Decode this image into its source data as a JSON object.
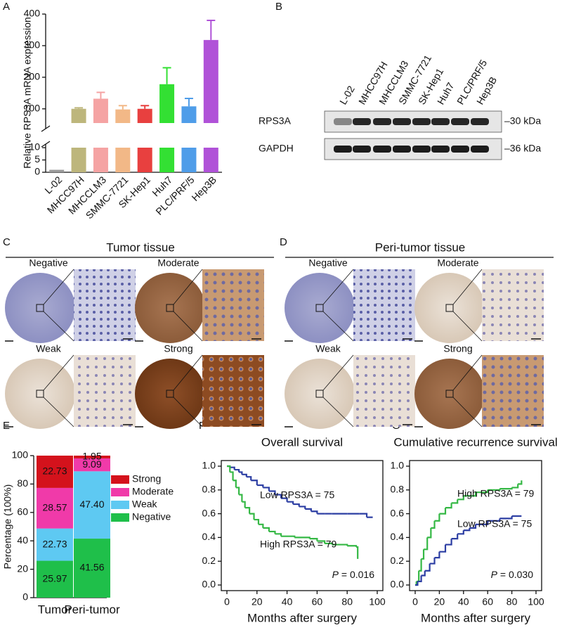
{
  "panel_labels": [
    "A",
    "B",
    "C",
    "D",
    "E",
    "F",
    "G"
  ],
  "blot": {
    "lanes": [
      "L-02",
      "MHCC97H",
      "MHCCLM3",
      "SMMC-7721",
      "SK-Hep1",
      "Huh7",
      "PLC/PRF/5",
      "Hep3B"
    ],
    "rows": [
      "RPS3A",
      "GAPDH"
    ],
    "markers": [
      "–30 kDa",
      "–36 kDa"
    ]
  },
  "ihc": [
    {
      "title": "Tumor tissue",
      "grades": [
        "Negative",
        "Moderate",
        "Weak",
        "Strong"
      ]
    },
    {
      "title": "Peri-tumor tissue",
      "grades": [
        "Negative",
        "Moderate",
        "Weak",
        "Strong"
      ]
    }
  ],
  "chart_data": [
    {
      "type": "bar",
      "ylabel": "Relative RPS3A mRNA expression",
      "categories": [
        "L-02",
        "MHCC97H",
        "MHCCLM3",
        "SMMC-7721",
        "SK-Hep1",
        "Huh7",
        "PLC/PRF/5",
        "Hep3B"
      ],
      "values": [
        1,
        100,
        132,
        98,
        100,
        178,
        108,
        318
      ],
      "errors": [
        0,
        3,
        20,
        12,
        10,
        52,
        25,
        62
      ],
      "colors": [
        "#9a9a9a",
        "#bdb67c",
        "#f5a3a3",
        "#f2b887",
        "#e8403f",
        "#33e033",
        "#4f9de9",
        "#b052d8"
      ],
      "ylim": [
        0,
        400
      ],
      "ybreak": [
        10,
        55
      ],
      "yticks": [
        0,
        5,
        10,
        100,
        200,
        300,
        400
      ]
    },
    {
      "type": "stacked_bar",
      "ylabel": "Percentage (100%)",
      "categories": [
        "Tumor",
        "Peri-tumor"
      ],
      "series": [
        {
          "name": "Negative",
          "color": "#1fbf4a",
          "values": [
            25.97,
            41.56
          ],
          "value_labels": [
            "25.97",
            "41.56"
          ]
        },
        {
          "name": "Weak",
          "color": "#5ec9f2",
          "values": [
            22.73,
            47.4
          ],
          "value_labels": [
            "22.73",
            "47.40"
          ]
        },
        {
          "name": "Moderate",
          "color": "#f03aa9",
          "values": [
            28.57,
            9.09
          ],
          "value_labels": [
            "28.57",
            "9.09"
          ]
        },
        {
          "name": "Strong",
          "color": "#d4121c",
          "values": [
            22.73,
            1.95
          ],
          "value_labels": [
            "22.73",
            "1.95"
          ]
        }
      ],
      "ylim": [
        0,
        100
      ],
      "yticks": [
        0,
        20,
        40,
        60,
        80,
        100
      ]
    },
    {
      "type": "step",
      "title": "Overall survival",
      "xlabel": "Months after surgery",
      "series": [
        {
          "name": "Low RPS3A = 75",
          "color": "#2c3ea3",
          "x": [
            0,
            2,
            5,
            8,
            10,
            13,
            16,
            20,
            24,
            28,
            32,
            36,
            40,
            44,
            48,
            52,
            56,
            60,
            65,
            70,
            80,
            88,
            93,
            97
          ],
          "values": [
            1,
            0.99,
            0.97,
            0.95,
            0.93,
            0.91,
            0.88,
            0.84,
            0.82,
            0.79,
            0.76,
            0.73,
            0.7,
            0.68,
            0.66,
            0.64,
            0.62,
            0.6,
            0.6,
            0.6,
            0.6,
            0.6,
            0.57,
            0.57
          ]
        },
        {
          "name": "High RPS3A = 79",
          "color": "#35b845",
          "x": [
            0,
            2,
            4,
            6,
            8,
            10,
            12,
            15,
            18,
            21,
            24,
            28,
            32,
            36,
            45,
            55,
            60,
            65,
            70,
            80,
            86,
            87
          ],
          "values": [
            1,
            0.95,
            0.88,
            0.82,
            0.76,
            0.7,
            0.65,
            0.6,
            0.55,
            0.51,
            0.48,
            0.45,
            0.43,
            0.41,
            0.4,
            0.39,
            0.37,
            0.35,
            0.34,
            0.33,
            0.32,
            0.22
          ]
        }
      ],
      "xlim": [
        0,
        100
      ],
      "xticks": [
        0,
        20,
        40,
        60,
        80,
        100
      ],
      "ylim": [
        0,
        1
      ],
      "yticks": [
        {
          "value": 0,
          "label": "0.0"
        },
        0.2,
        0.4,
        0.6,
        0.8,
        {
          "value": 1,
          "label": "1.0"
        }
      ],
      "p_symbol": "P",
      "p_text": "= 0.016"
    },
    {
      "type": "step",
      "title": "Cumulative recurrence survival",
      "xlabel": "Months after surgery",
      "series": [
        {
          "name": "High RPS3A = 79",
          "color": "#35b845",
          "x": [
            0,
            1,
            3,
            5,
            7,
            10,
            13,
            16,
            20,
            25,
            30,
            35,
            40,
            50,
            60,
            70,
            80,
            85,
            88
          ],
          "values": [
            0,
            0.03,
            0.12,
            0.22,
            0.3,
            0.4,
            0.48,
            0.54,
            0.6,
            0.65,
            0.69,
            0.72,
            0.75,
            0.78,
            0.8,
            0.81,
            0.82,
            0.85,
            0.88
          ]
        },
        {
          "name": "Low RPS3A = 75",
          "color": "#2c3ea3",
          "x": [
            0,
            2,
            5,
            8,
            12,
            16,
            20,
            25,
            30,
            35,
            40,
            45,
            50,
            60,
            70,
            80,
            88
          ],
          "values": [
            0,
            0.03,
            0.08,
            0.12,
            0.18,
            0.23,
            0.28,
            0.34,
            0.39,
            0.43,
            0.46,
            0.48,
            0.51,
            0.54,
            0.56,
            0.58,
            0.58
          ]
        }
      ],
      "xlim": [
        0,
        100
      ],
      "xticks": [
        0,
        20,
        40,
        60,
        80,
        100
      ],
      "ylim": [
        0,
        1
      ],
      "yticks": [
        {
          "value": 0,
          "label": "0.0"
        },
        0.2,
        0.4,
        0.6,
        0.8,
        {
          "value": 1,
          "label": "1.0"
        }
      ],
      "p_symbol": "P",
      "p_text": "= 0.030"
    }
  ]
}
